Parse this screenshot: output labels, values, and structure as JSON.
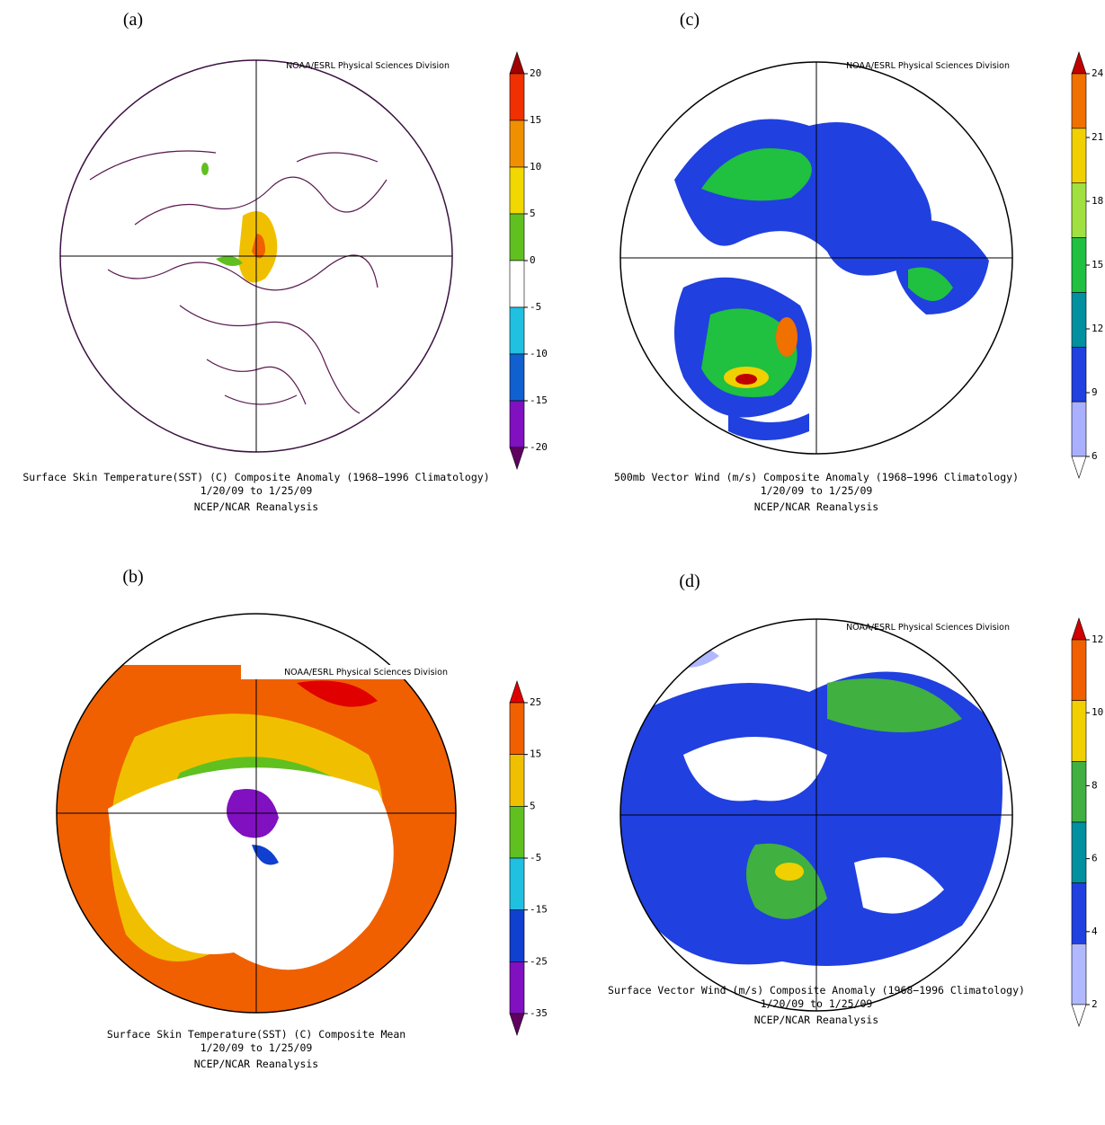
{
  "panels": [
    {
      "label": "(a)",
      "credit": "NOAA/ESRL Physical Sciences Division",
      "caption": [
        "Surface Skin Temperature(SST) (C) Composite Anomaly (1968−1996 Climatology)",
        "1/20/09  to 1/25/09",
        "NCEP/NCAR Reanalysis"
      ],
      "colorbar": {
        "ticks": [
          20,
          15,
          10,
          5,
          0,
          -5,
          -10,
          -15,
          -20
        ],
        "colors": [
          "#a00000",
          "#f03000",
          "#f09000",
          "#f0d800",
          "#60c020",
          "#ffffff",
          "#20c0e0",
          "#1060d0",
          "#8010c0",
          "#600060"
        ]
      }
    },
    {
      "label": "(c)",
      "credit": "NOAA/ESRL Physical Sciences Division",
      "caption": [
        "500mb Vector Wind (m/s) Composite Anomaly (1968−1996 Climatology)",
        "1/20/09  to 1/25/09",
        "NCEP/NCAR Reanalysis"
      ],
      "colorbar": {
        "ticks": [
          24,
          21,
          18,
          15,
          12,
          9,
          6
        ],
        "colors": [
          "#c00000",
          "#f07000",
          "#f0d000",
          "#a0e040",
          "#20c040",
          "#0090a0",
          "#2040e0",
          "#a8b0ff",
          "#ffffff"
        ]
      }
    },
    {
      "label": "(b)",
      "credit": "NOAA/ESRL Physical Sciences Division",
      "caption": [
        "Surface Skin Temperature(SST) (C) Composite Mean",
        "1/20/09  to 1/25/09",
        "NCEP/NCAR Reanalysis"
      ],
      "colorbar": {
        "ticks": [
          25,
          15,
          5,
          -5,
          -15,
          -25,
          -35
        ],
        "colors": [
          "#e00000",
          "#f06000",
          "#f0c000",
          "#60c020",
          "#20c0e0",
          "#1040d0",
          "#8010c0",
          "#600060"
        ]
      }
    },
    {
      "label": "(d)",
      "credit": "NOAA/ESRL Physical Sciences Division",
      "caption": [
        "Surface Vector Wind (m/s) Composite Anomaly (1968−1996 Climatology)",
        "1/20/09  to 1/25/09",
        "NCEP/NCAR Reanalysis"
      ],
      "colorbar": {
        "ticks": [
          12,
          10,
          8,
          6,
          4,
          2
        ],
        "colors": [
          "#d00000",
          "#f06000",
          "#f0d000",
          "#40b040",
          "#0090a0",
          "#2040e0",
          "#b0b8ff",
          "#ffffff"
        ]
      }
    }
  ]
}
